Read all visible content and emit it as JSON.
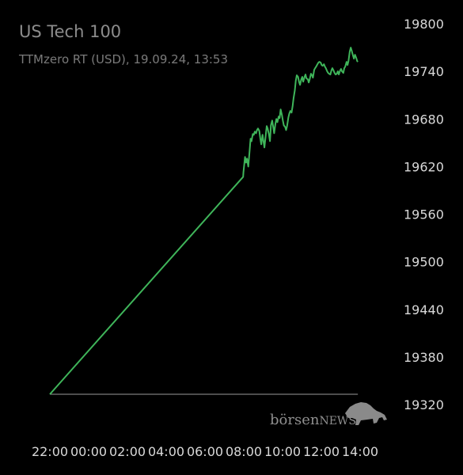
{
  "chart_data": {
    "type": "line",
    "title": "US Tech 100",
    "subtitle": "TTMzero RT (USD), 19.09.24, 13:53",
    "line_color": "#3fb55a",
    "baseline_color": "#9a9a9a",
    "ylim": [
      19320,
      19800
    ],
    "y_ticks": [
      "19800",
      "19740",
      "19680",
      "19620",
      "19560",
      "19500",
      "19440",
      "19380",
      "19320"
    ],
    "x_ticks": [
      "22:00",
      "00:00",
      "02:00",
      "04:00",
      "06:00",
      "08:00",
      "10:00",
      "12:00",
      "14:00"
    ],
    "baseline": 19333,
    "series": [
      {
        "x": [
          "22:00",
          "07:58",
          "07:59",
          "08:04",
          "08:07",
          "08:10",
          "08:14",
          "08:18",
          "08:21",
          "08:24",
          "08:28",
          "08:31",
          "08:34",
          "08:38",
          "08:41",
          "08:44",
          "08:48",
          "08:51",
          "08:54",
          "08:58",
          "09:01",
          "09:04",
          "09:08",
          "09:11",
          "09:14",
          "09:18",
          "09:21",
          "09:24",
          "09:28",
          "09:31",
          "09:34",
          "09:38",
          "09:41",
          "09:44",
          "09:48",
          "09:51",
          "09:54",
          "09:58",
          "10:01",
          "10:04",
          "10:08",
          "10:11",
          "10:14",
          "10:18",
          "10:21",
          "10:24",
          "10:28",
          "10:31",
          "10:34",
          "10:38",
          "10:41",
          "10:44",
          "10:48",
          "10:51",
          "10:54",
          "10:58",
          "11:01",
          "11:04",
          "11:08",
          "11:11",
          "11:14",
          "11:18",
          "11:21",
          "11:24",
          "11:28",
          "11:31",
          "11:34",
          "11:38",
          "11:41",
          "11:44",
          "11:48",
          "11:51",
          "11:54",
          "11:58",
          "12:01",
          "12:04",
          "12:08",
          "12:11",
          "12:14",
          "12:18",
          "12:21",
          "12:24",
          "12:28",
          "12:31",
          "12:34",
          "12:38",
          "12:41",
          "12:44",
          "12:48",
          "12:51",
          "12:54",
          "12:58",
          "13:01",
          "13:04",
          "13:08",
          "13:11",
          "13:14",
          "13:18",
          "13:21",
          "13:24",
          "13:28",
          "13:31",
          "13:34",
          "13:38",
          "13:41",
          "13:44",
          "13:48",
          "13:51",
          "13:53"
        ],
        "values": [
          19333,
          19607,
          19613,
          19632,
          19625,
          19630,
          19620,
          19640,
          19655,
          19652,
          19661,
          19660,
          19664,
          19662,
          19666,
          19668,
          19665,
          19656,
          19648,
          19660,
          19652,
          19644,
          19660,
          19671,
          19668,
          19660,
          19652,
          19672,
          19678,
          19670,
          19662,
          19674,
          19680,
          19676,
          19683,
          19681,
          19692,
          19685,
          19678,
          19672,
          19670,
          19666,
          19671,
          19682,
          19687,
          19690,
          19688,
          19696,
          19706,
          19716,
          19728,
          19735,
          19733,
          19727,
          19723,
          19730,
          19733,
          19727,
          19733,
          19736,
          19731,
          19730,
          19726,
          19730,
          19737,
          19735,
          19732,
          19742,
          19744,
          19746,
          19749,
          19751,
          19752,
          19751,
          19748,
          19747,
          19749,
          19746,
          19744,
          19740,
          19738,
          19737,
          19736,
          19741,
          19744,
          19741,
          19738,
          19736,
          19737,
          19740,
          19736,
          19741,
          19743,
          19740,
          19738,
          19744,
          19746,
          19752,
          19748,
          19753,
          19765,
          19770,
          19766,
          19760,
          19756,
          19761,
          19757,
          19753,
          19752
        ]
      }
    ]
  },
  "watermark": {
    "text_main": "börsen",
    "text_caps": "NEWS"
  }
}
